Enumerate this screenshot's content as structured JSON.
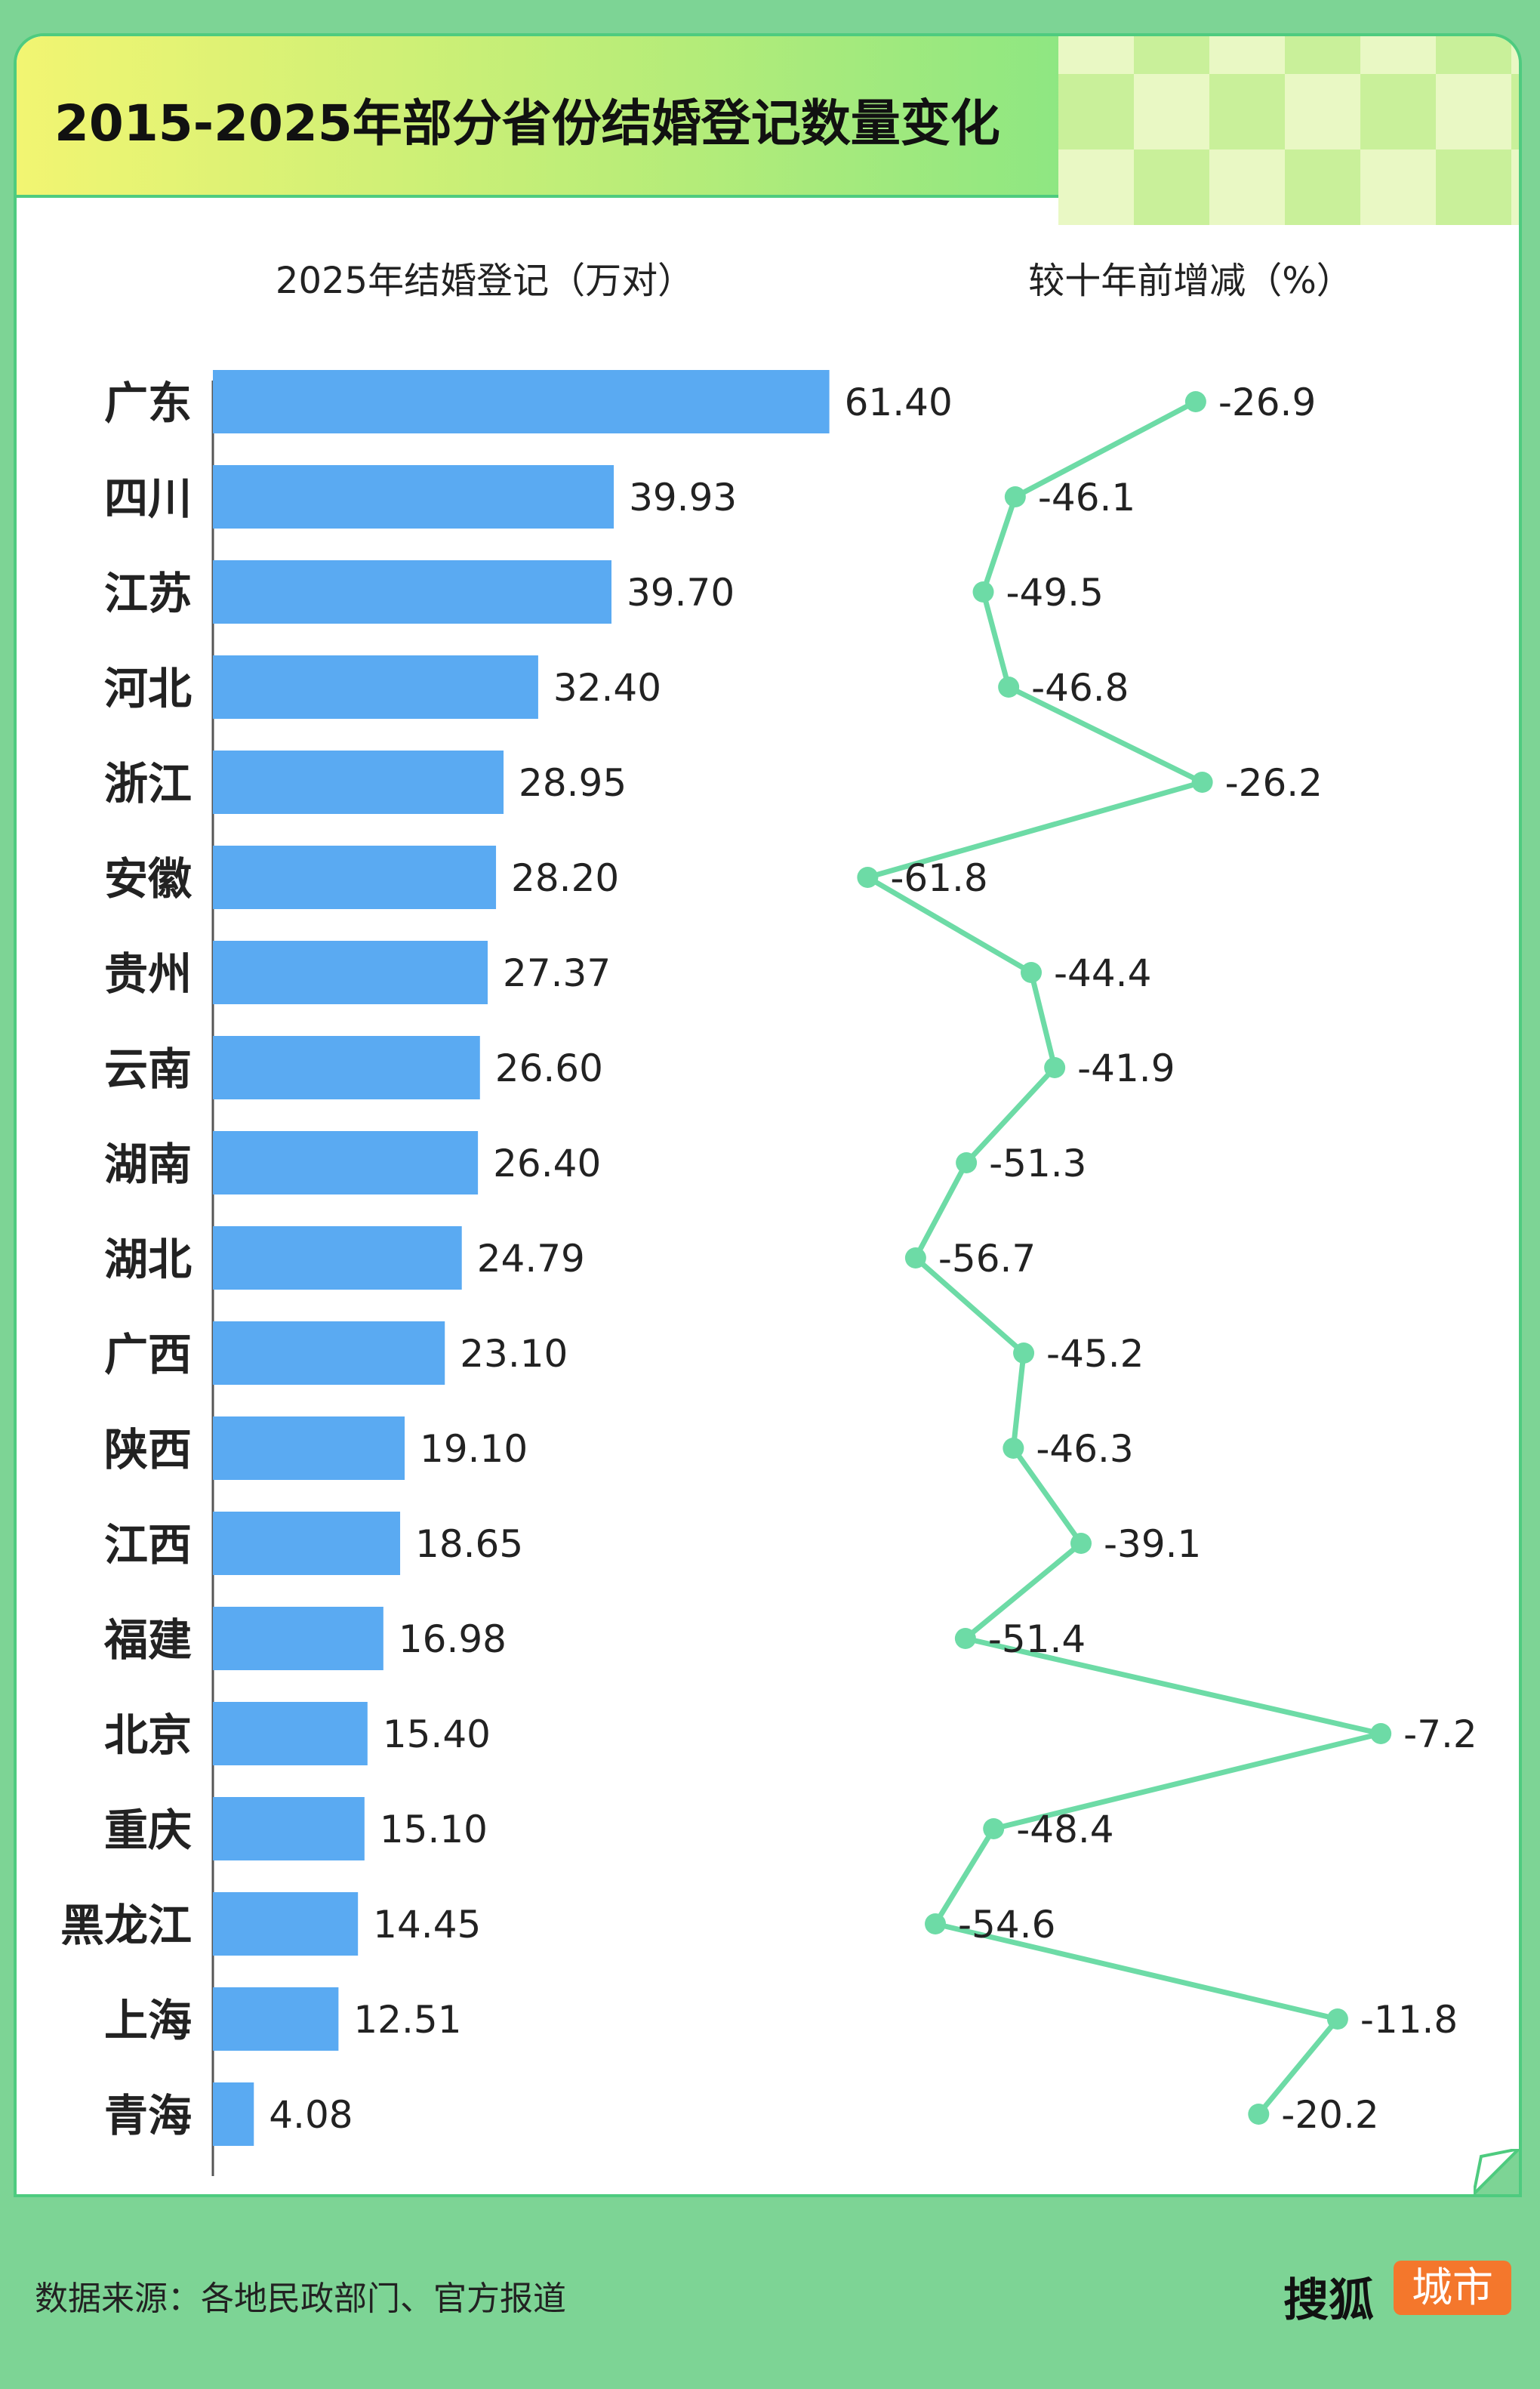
{
  "title": "2015-2025年部分省份结婚登记数量变化",
  "footer": {
    "source": "数据来源：各地民政部门、官方报道",
    "logo_main": "搜狐",
    "logo_badge": "城市"
  },
  "colors": {
    "background": "#7dd495",
    "bar": "#5aaaf2",
    "line": "#6ddba6",
    "badge": "#f4772c"
  },
  "chart_data": [
    {
      "type": "bar",
      "orientation": "horizontal",
      "title": "2025年结婚登记（万对）",
      "categories": [
        "广东",
        "四川",
        "江苏",
        "河北",
        "浙江",
        "安徽",
        "贵州",
        "云南",
        "湖南",
        "湖北",
        "广西",
        "陕西",
        "江西",
        "福建",
        "北京",
        "重庆",
        "黑龙江",
        "上海",
        "青海"
      ],
      "values": [
        61.4,
        39.93,
        39.7,
        32.4,
        28.95,
        28.2,
        27.37,
        26.6,
        26.4,
        24.79,
        23.1,
        19.1,
        18.65,
        16.98,
        15.4,
        15.1,
        14.45,
        12.51,
        4.08
      ],
      "value_labels": [
        "61.40",
        "39.93",
        "39.70",
        "32.40",
        "28.95",
        "28.20",
        "27.37",
        "26.60",
        "26.40",
        "24.79",
        "23.10",
        "19.10",
        "18.65",
        "16.98",
        "15.40",
        "15.10",
        "14.45",
        "12.51",
        "4.08"
      ],
      "xlim": [
        0,
        64
      ]
    },
    {
      "type": "line",
      "title": "较十年前增减（%）",
      "categories": [
        "广东",
        "四川",
        "江苏",
        "河北",
        "浙江",
        "安徽",
        "贵州",
        "云南",
        "湖南",
        "湖北",
        "广西",
        "陕西",
        "江西",
        "福建",
        "北京",
        "重庆",
        "黑龙江",
        "上海",
        "青海"
      ],
      "values": [
        -26.9,
        -46.1,
        -49.5,
        -46.8,
        -26.2,
        -61.8,
        -44.4,
        -41.9,
        -51.3,
        -56.7,
        -45.2,
        -46.3,
        -39.1,
        -51.4,
        -7.2,
        -48.4,
        -54.6,
        -11.8,
        -20.2
      ],
      "value_labels": [
        "-26.9",
        "-46.1",
        "-49.5",
        "-46.8",
        "-26.2",
        "-61.8",
        "-44.4",
        "-41.9",
        "-51.3",
        "-56.7",
        "-45.2",
        "-46.3",
        "-39.1",
        "-51.4",
        "-7.2",
        "-48.4",
        "-54.6",
        "-11.8",
        "-20.2"
      ],
      "xlim": [
        -64,
        -5
      ]
    }
  ]
}
